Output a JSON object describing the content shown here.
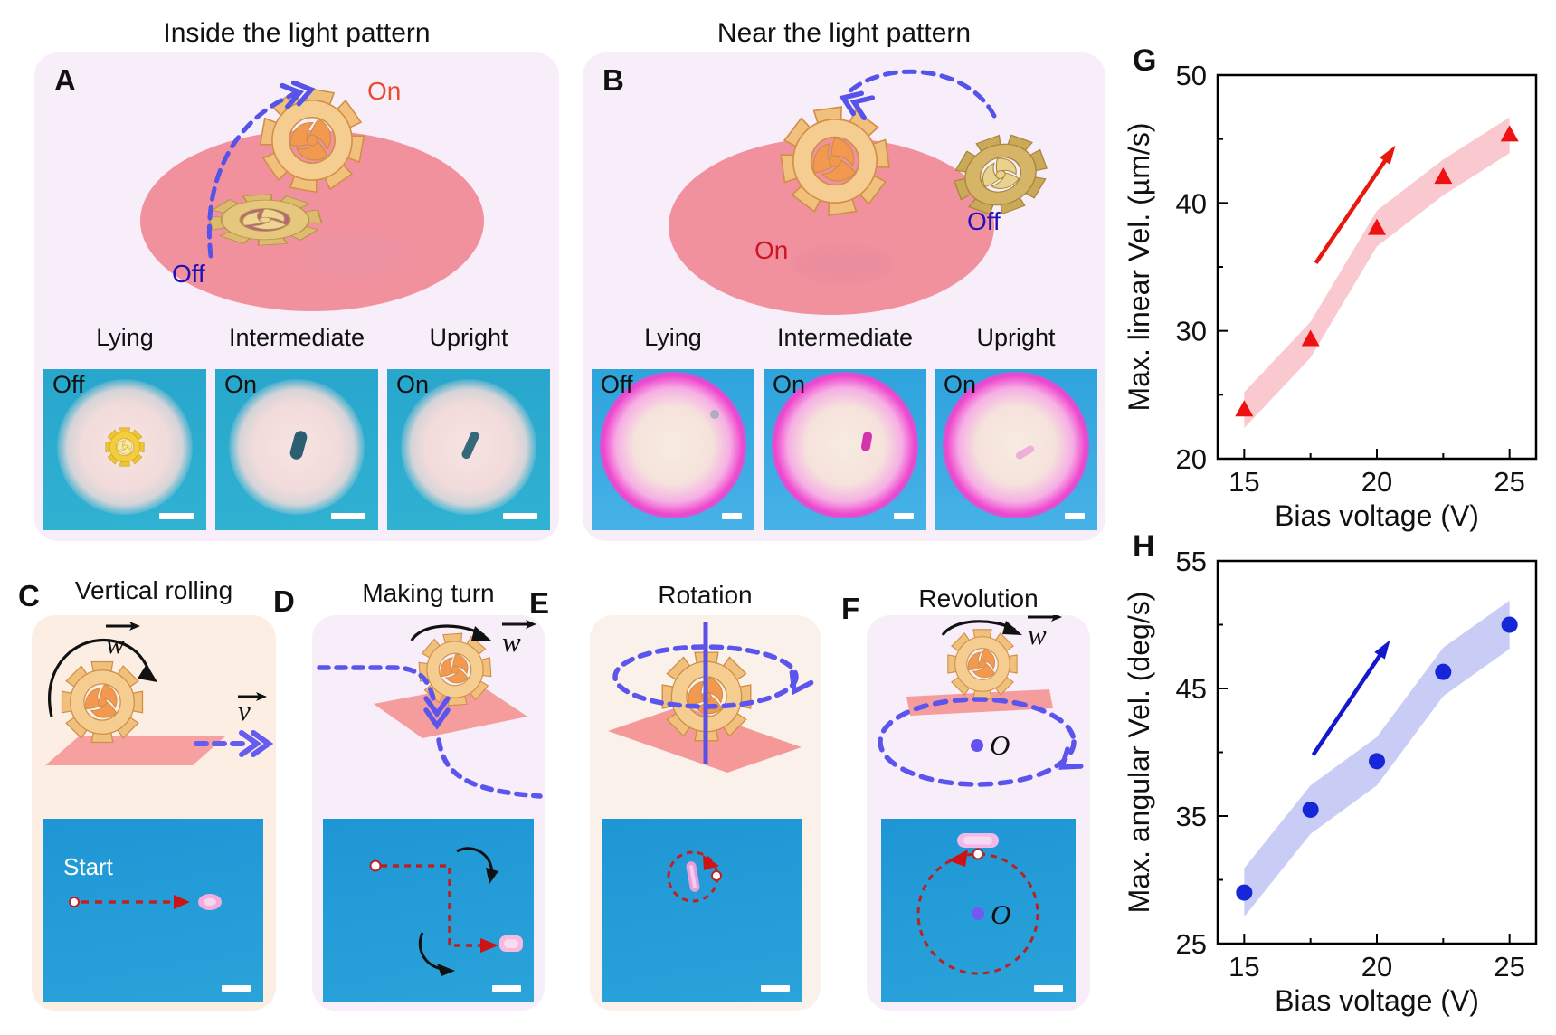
{
  "titles": {
    "inside": "Inside the light pattern",
    "near": "Near the light pattern"
  },
  "colors": {
    "light_pattern_pink": "#f2919e",
    "on_label_inside": "#e84c31",
    "on_label_near": "#ce1526",
    "off_label_blue": "#2013b6",
    "dashed_path_blue": "#5553ea",
    "micro_track_red": "#c02020"
  },
  "panels": {
    "A": {
      "label": "A",
      "on": "On",
      "off": "Off",
      "states": [
        "Lying",
        "Intermediate",
        "Upright"
      ],
      "lights": [
        "Off",
        "On",
        "On"
      ]
    },
    "B": {
      "label": "B",
      "on": "On",
      "off": "Off",
      "states": [
        "Lying",
        "Intermediate",
        "Upright"
      ],
      "lights": [
        "Off",
        "On",
        "On"
      ]
    },
    "C": {
      "label": "C",
      "title": "Vertical rolling",
      "omega": "w",
      "velocity": "v",
      "start": "Start"
    },
    "D": {
      "label": "D",
      "title": "Making turn",
      "omega": "w"
    },
    "E": {
      "label": "E",
      "title": "Rotation"
    },
    "F": {
      "label": "F",
      "title": "Revolution",
      "omega": "w",
      "center": "O",
      "center_micro": "O"
    }
  },
  "chart_data": [
    {
      "id": "G",
      "panel_label": "G",
      "type": "scatter",
      "x": [
        15,
        17.5,
        20,
        22.5,
        25
      ],
      "y": [
        23.8,
        29.3,
        38,
        42,
        45.3
      ],
      "xlabel": "Bias voltage (V)",
      "ylabel": "Max. linear Vel. (µm/s)",
      "xlim": [
        14,
        26
      ],
      "ylim": [
        20,
        50
      ],
      "xticks": [
        15,
        20,
        25
      ],
      "xticks_minor": [
        17.5,
        22.5
      ],
      "yticks": [
        20,
        30,
        40,
        50
      ],
      "yticks_minor": [
        25,
        35,
        45
      ],
      "marker": "triangle",
      "marker_color": "#ee1111",
      "band_color": "#f9c9cf",
      "band_halfwidth": 1.4,
      "grid": false,
      "legend": null,
      "arrow": {
        "x1": 17.7,
        "y1": 35.3,
        "x2": 20.7,
        "y2": 44.5,
        "color": "#e8180e"
      }
    },
    {
      "id": "H",
      "panel_label": "H",
      "type": "scatter",
      "x": [
        15,
        17.5,
        20,
        22.5,
        25
      ],
      "y": [
        29,
        35.5,
        39.3,
        46.3,
        50
      ],
      "xlabel": "Bias voltage (V)",
      "ylabel": "Max. angular Vel. (deg/s)",
      "xlim": [
        14,
        26
      ],
      "ylim": [
        25,
        55
      ],
      "xticks": [
        15,
        20,
        25
      ],
      "xticks_minor": [
        17.5,
        22.5
      ],
      "yticks": [
        25,
        35,
        45,
        55
      ],
      "yticks_minor": [
        30,
        40,
        50
      ],
      "marker": "circle",
      "marker_color": "#1527d8",
      "band_color": "#c9cdf5",
      "band_halfwidth": 1.9,
      "grid": false,
      "legend": null,
      "arrow": {
        "x1": 17.6,
        "y1": 39.8,
        "x2": 20.5,
        "y2": 48.8,
        "color": "#1418cc"
      }
    }
  ]
}
